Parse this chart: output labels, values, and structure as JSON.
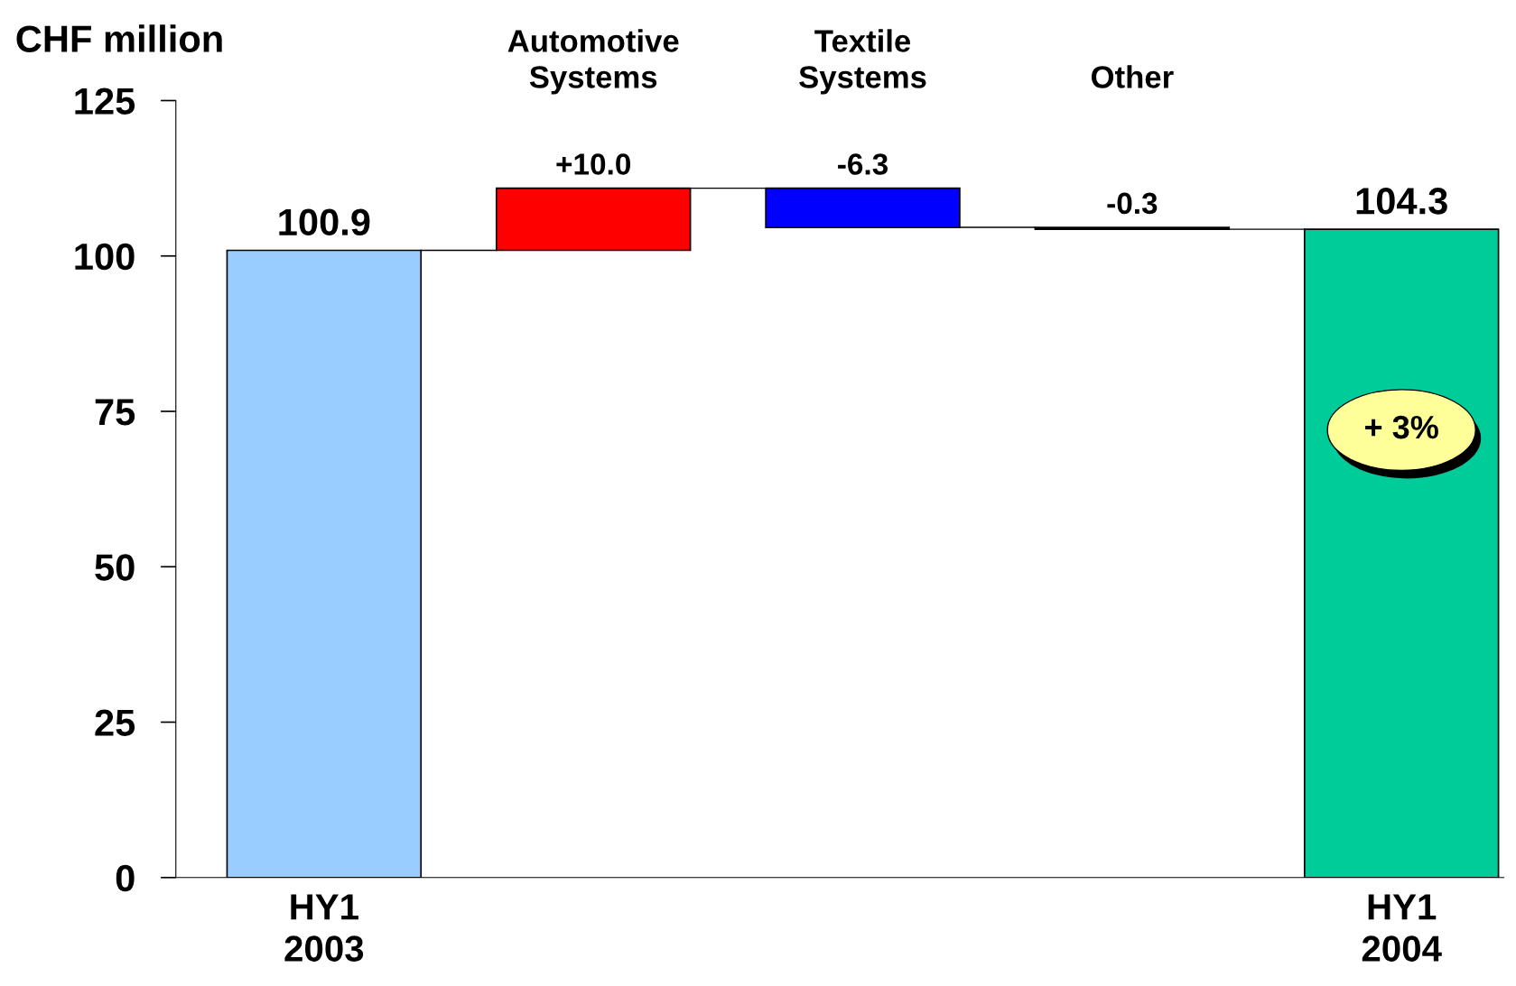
{
  "chart_data": {
    "type": "bar",
    "ylabel": "CHF million",
    "categories": [
      "HY1\n2003",
      "Automotive\nSystems",
      "Textile\nSystems",
      "Other",
      "HY1\n2004"
    ],
    "values": [
      100.9,
      10.0,
      -6.3,
      -0.3,
      104.3
    ],
    "base": [
      0,
      100.9,
      110.9,
      104.6,
      0
    ],
    "colors": [
      "#99ccff",
      "#ff0000",
      "#0000ff",
      "#000000",
      "#00cc99"
    ],
    "value_labels": [
      "100.9",
      "+10.0",
      "-6.3",
      "-0.3",
      "104.3"
    ],
    "annotations": [
      "+ 3%"
    ],
    "ylim": [
      0,
      125
    ],
    "yticks": [
      0,
      25,
      50,
      75,
      100,
      125
    ],
    "grid": false,
    "legend": false
  }
}
